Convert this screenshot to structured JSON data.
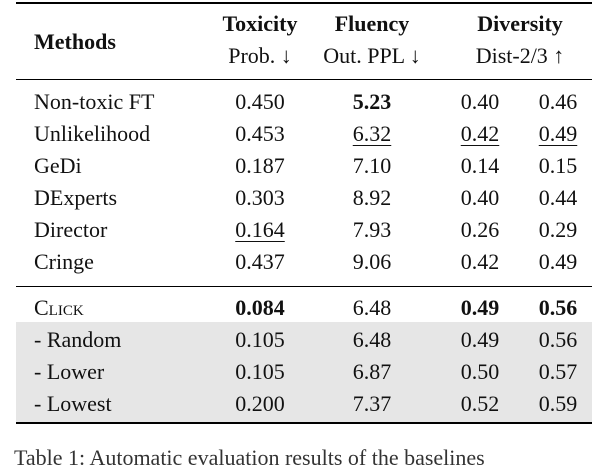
{
  "table": {
    "header": {
      "methods": "Methods",
      "groups": [
        {
          "name": "Toxicity",
          "sub": "Prob. ↓"
        },
        {
          "name": "Fluency",
          "sub": "Out. PPL ↓"
        },
        {
          "name": "Diversity",
          "sub": "Dist-2/3 ↑"
        }
      ]
    },
    "rows": [
      {
        "method": "Non-toxic FT",
        "tox": "0.450",
        "ppl": "5.23",
        "d2": "0.40",
        "d3": "0.46"
      },
      {
        "method": "Unlikelihood",
        "tox": "0.453",
        "ppl": "6.32",
        "d2": "0.42",
        "d3": "0.49"
      },
      {
        "method": "GeDi",
        "tox": "0.187",
        "ppl": "7.10",
        "d2": "0.14",
        "d3": "0.15"
      },
      {
        "method": "DExperts",
        "tox": "0.303",
        "ppl": "8.92",
        "d2": "0.40",
        "d3": "0.44"
      },
      {
        "method": "Director",
        "tox": "0.164",
        "ppl": "7.93",
        "d2": "0.26",
        "d3": "0.29"
      },
      {
        "method": "Cringe",
        "tox": "0.437",
        "ppl": "9.06",
        "d2": "0.42",
        "d3": "0.49"
      },
      {
        "method": "Click",
        "tox": "0.084",
        "ppl": "6.48",
        "d2": "0.49",
        "d3": "0.56"
      },
      {
        "method": "- Random",
        "tox": "0.105",
        "ppl": "6.48",
        "d2": "0.49",
        "d3": "0.56"
      },
      {
        "method": "- Lower",
        "tox": "0.105",
        "ppl": "6.87",
        "d2": "0.50",
        "d3": "0.57"
      },
      {
        "method": "- Lowest",
        "tox": "0.200",
        "ppl": "7.37",
        "d2": "0.52",
        "d3": "0.59"
      }
    ]
  },
  "caption_fragment": "Table 1: Automatic evaluation results of the baselines"
}
